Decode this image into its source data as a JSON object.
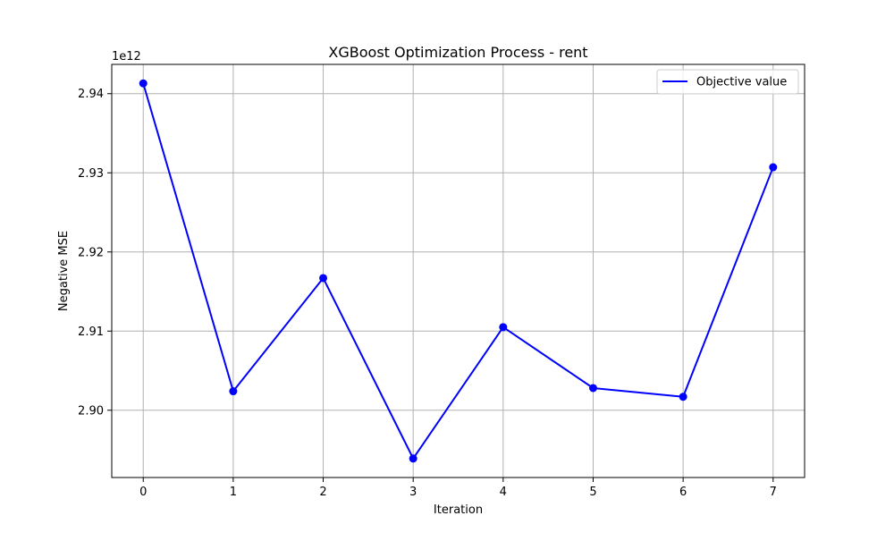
{
  "chart_data": {
    "type": "line",
    "title": "XGBoost Optimization Process - rent",
    "xlabel": "Iteration",
    "ylabel": "Negative MSE",
    "y_offset_label": "1e12",
    "x": [
      0,
      1,
      2,
      3,
      4,
      5,
      6,
      7
    ],
    "series": [
      {
        "name": "Objective value",
        "values": [
          2.9413,
          2.9024,
          2.9167,
          2.8939,
          2.9105,
          2.9028,
          2.9017,
          2.9307
        ],
        "color": "#0000ff"
      }
    ],
    "x_ticks": [
      "0",
      "1",
      "2",
      "3",
      "4",
      "5",
      "6",
      "7"
    ],
    "y_ticks": [
      {
        "value": 2.9,
        "label": "2.90"
      },
      {
        "value": 2.91,
        "label": "2.91"
      },
      {
        "value": 2.92,
        "label": "2.92"
      },
      {
        "value": 2.93,
        "label": "2.93"
      },
      {
        "value": 2.94,
        "label": "2.94"
      }
    ],
    "xlim": [
      -0.35,
      7.35
    ],
    "ylim": [
      2.8915,
      2.9437
    ],
    "grid": true,
    "legend_position": "top-right"
  }
}
